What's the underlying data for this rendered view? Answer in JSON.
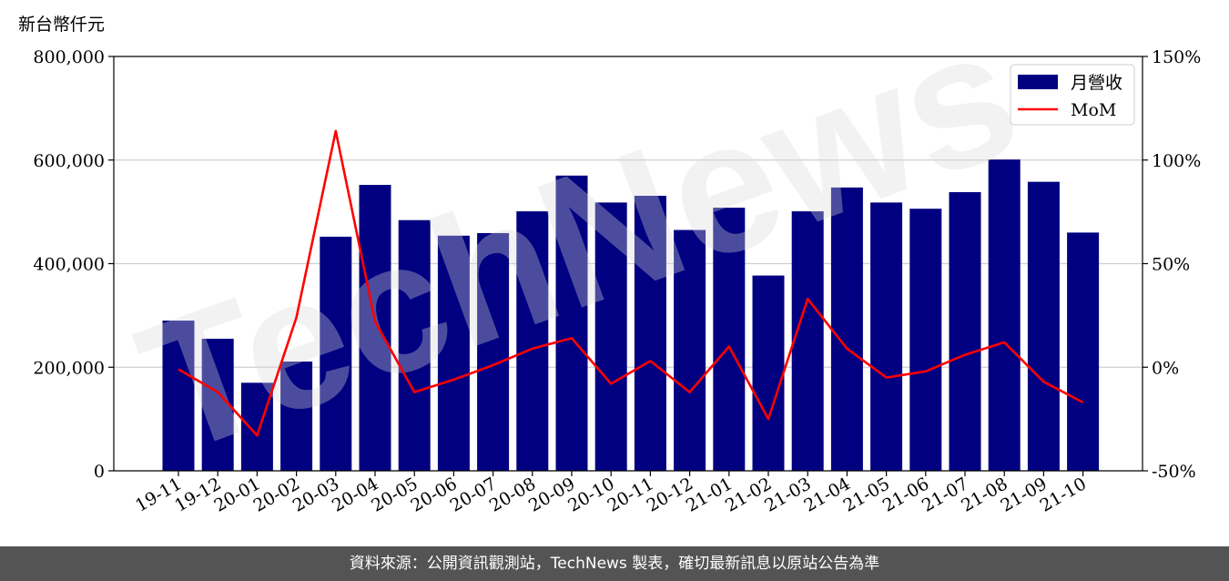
{
  "chart_data": {
    "type": "bar",
    "ylabel": "新台幣仟元",
    "categories": [
      "19-11",
      "19-12",
      "20-01",
      "20-02",
      "20-03",
      "20-04",
      "20-05",
      "20-06",
      "20-07",
      "20-08",
      "20-09",
      "20-10",
      "20-11",
      "20-12",
      "21-01",
      "21-02",
      "21-03",
      "21-04",
      "21-05",
      "21-06",
      "21-07",
      "21-08",
      "21-09",
      "21-10"
    ],
    "series": [
      {
        "name": "月營收",
        "type": "bar",
        "axis": "left",
        "color": "#000080",
        "values": [
          290000,
          255000,
          170000,
          211000,
          452000,
          552000,
          484000,
          454000,
          459000,
          501000,
          570000,
          518000,
          531000,
          465000,
          508000,
          377000,
          501000,
          547000,
          518000,
          506000,
          538000,
          601000,
          558000,
          460000
        ]
      },
      {
        "name": "MoM",
        "type": "line",
        "axis": "right",
        "color": "#ff0000",
        "values": [
          -0.01,
          -0.12,
          -0.33,
          0.24,
          1.14,
          0.22,
          -0.12,
          -0.06,
          0.01,
          0.09,
          0.14,
          -0.08,
          0.03,
          -0.12,
          0.1,
          -0.25,
          0.33,
          0.09,
          -0.05,
          -0.02,
          0.06,
          0.12,
          -0.07,
          -0.17
        ]
      }
    ],
    "ylim": [
      0,
      800000
    ],
    "y2lim": [
      -0.5,
      1.5
    ],
    "yticks": [
      "0",
      "200,000",
      "400,000",
      "600,000",
      "800,000"
    ],
    "y2ticks": [
      "-50%",
      "0%",
      "50%",
      "100%",
      "150%"
    ],
    "grid": true,
    "legend_position": "top-right"
  },
  "watermark": "TechNews",
  "footer": "資料來源：公開資訊觀測站，TechNews 製表，確切最新訊息以原站公告為準"
}
